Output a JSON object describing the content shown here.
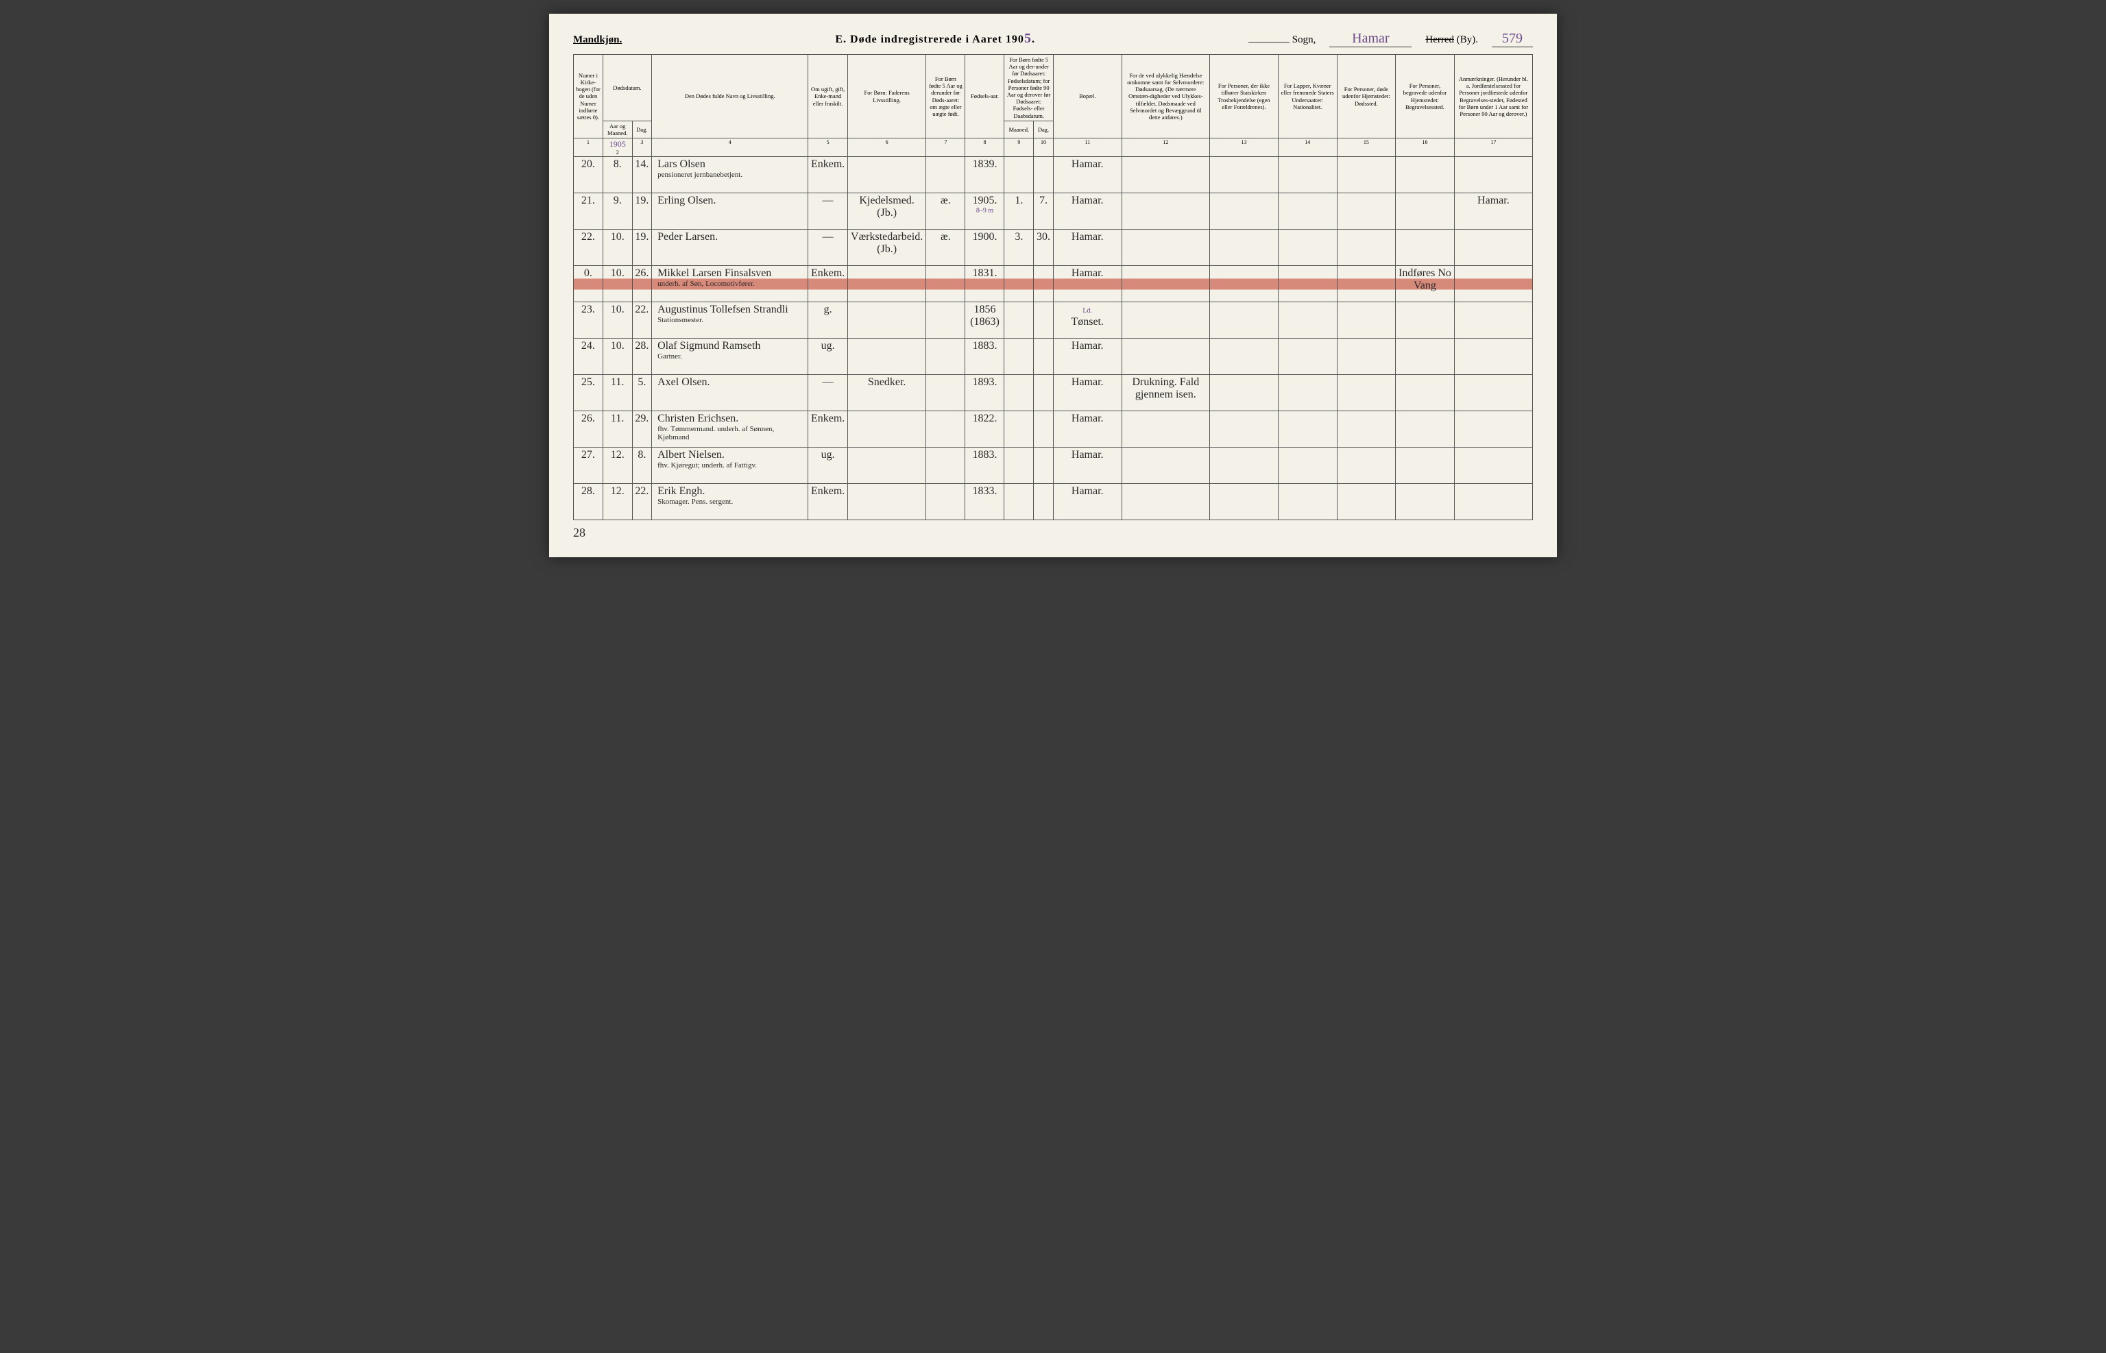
{
  "header": {
    "gender": "Mandkjøn.",
    "title_prefix": "E.   Døde indregistrerede i Aaret 190",
    "year_suffix": "5",
    "sogn_label": "Sogn,",
    "sogn_value": "Hamar",
    "herred_label": "Herred",
    "by_label": "(By).",
    "page_number": "579"
  },
  "columns": {
    "c1": "Numer i Kirke-bogen (for de uden Numer indførte sættes 0).",
    "c2_3": "Dødsdatum.",
    "c2": "Aar og Maaned.",
    "c3": "Dag.",
    "c4": "Den Dødes fulde Navn og Livsstilling.",
    "c5": "Om ugift, gift, Enke-mand eller fraskilt.",
    "c6": "For Børn: Faderens Livsstilling.",
    "c7": "For Børn fødte 5 Aar og derunder før Døds-aaret: om ægte eller uægte født.",
    "c8": "Fødsels-aar.",
    "c9_10": "For Børn fødte 5 Aar og der-under før Dødsaaret: Fødselsdatum; for Personer fødte 90 Aar og derover før Dødsaaret: Fødsels- eller Daabsdatum.",
    "c9": "Maaned.",
    "c10": "Dag.",
    "c11": "Bopæl.",
    "c12": "For de ved ulykkelig Hændelse omkomne samt for Selvmordere: Dødsaarsag. (De nærmere Omstæn-digheder ved Ulykkes-tilfældet, Dødsmaade ved Selvmordet og Bevæggrund til dette anføres.)",
    "c13": "For Personer, der ikke tilhører Statskirken Trosbekjendelse (egen eller Forældrenes).",
    "c14": "For Lapper, Kvæner eller fremmede Staters Undersaatter: Nationalitet.",
    "c15": "For Personer, døde udenfor Hjemstedet: Dødssted.",
    "c16": "For Personer, begravede udenfor Hjemstedet: Begravelsessted.",
    "c17": "Anmærkninger. (Herunder bl. a. Jordfæstelsessted for Personer jordfæstede udenfor Begravelses-stedet, Fødested for Børn under 1 Aar samt for Personer 90 Aar og derover.)"
  },
  "col_nums": [
    "1",
    "2",
    "3",
    "4",
    "5",
    "6",
    "7",
    "8",
    "9",
    "10",
    "11",
    "12",
    "13",
    "14",
    "15",
    "16",
    "17"
  ],
  "year_note": "1905",
  "rows": [
    {
      "num": "20.",
      "month": "8.",
      "day": "14.",
      "name": "Lars Olsen",
      "sub": "pensioneret jernbanebetjent.",
      "status": "Enkem.",
      "father": "",
      "legit": "",
      "birth": "1839.",
      "bm": "",
      "bd": "",
      "place": "Hamar.",
      "cause": "",
      "c13": "",
      "c14": "",
      "c15": "",
      "c16": "",
      "c17": ""
    },
    {
      "num": "21.",
      "month": "9.",
      "day": "19.",
      "name": "Erling Olsen.",
      "sub": "",
      "status": "—",
      "father": "Kjedelsmed. (Jb.)",
      "legit": "æ.",
      "birth": "1905.",
      "bm": "1.",
      "bd": "7.",
      "place": "Hamar.",
      "cause": "",
      "c13": "",
      "c14": "",
      "c15": "",
      "c16": "",
      "c17": "Hamar.",
      "note": "8–9 m"
    },
    {
      "num": "22.",
      "month": "10.",
      "day": "19.",
      "name": "Peder Larsen.",
      "sub": "",
      "status": "—",
      "father": "Værkstedarbeid. (Jb.)",
      "legit": "æ.",
      "birth": "1900.",
      "bm": "3.",
      "bd": "30.",
      "place": "Hamar.",
      "cause": "",
      "c13": "",
      "c14": "",
      "c15": "",
      "c16": "",
      "c17": ""
    },
    {
      "num": "0.",
      "month": "10.",
      "day": "26.",
      "name": "Mikkel Larsen Finsalsven",
      "sub": "underh. af Søn, Locomotivfører.",
      "status": "Enkem.",
      "father": "",
      "legit": "",
      "birth": "1831.",
      "bm": "",
      "bd": "",
      "place": "Hamar.",
      "cause": "",
      "c13": "",
      "c14": "",
      "c15": "",
      "c16": "Indføres No Vang",
      "c17": "",
      "highlight": true
    },
    {
      "num": "23.",
      "month": "10.",
      "day": "22.",
      "name": "Augustinus Tollefsen Strandli",
      "sub": "Stationsmester.",
      "status": "g.",
      "father": "",
      "legit": "",
      "birth": "1856 (1863)",
      "bm": "",
      "bd": "",
      "place": "Tønset.",
      "place_note": "Ld.",
      "cause": "",
      "c13": "",
      "c14": "",
      "c15": "",
      "c16": "",
      "c17": ""
    },
    {
      "num": "24.",
      "month": "10.",
      "day": "28.",
      "name": "Olaf Sigmund Ramseth",
      "sub": "Gartner.",
      "status": "ug.",
      "father": "",
      "legit": "",
      "birth": "1883.",
      "bm": "",
      "bd": "",
      "place": "Hamar.",
      "cause": "",
      "c13": "",
      "c14": "",
      "c15": "",
      "c16": "",
      "c17": ""
    },
    {
      "num": "25.",
      "month": "11.",
      "day": "5.",
      "name": "Axel Olsen.",
      "sub": "",
      "status": "—",
      "father": "Snedker.",
      "legit": "",
      "birth": "1893.",
      "bm": "",
      "bd": "",
      "place": "Hamar.",
      "cause": "Drukning. Fald gjennem isen.",
      "c13": "",
      "c14": "",
      "c15": "",
      "c16": "",
      "c17": ""
    },
    {
      "num": "26.",
      "month": "11.",
      "day": "29.",
      "name": "Christen Erichsen.",
      "sub": "fhv. Tømmermand. underh. af Sønnen, Kjøbmand",
      "status": "Enkem.",
      "father": "",
      "legit": "",
      "birth": "1822.",
      "bm": "",
      "bd": "",
      "place": "Hamar.",
      "cause": "",
      "c13": "",
      "c14": "",
      "c15": "",
      "c16": "",
      "c17": ""
    },
    {
      "num": "27.",
      "month": "12.",
      "day": "8.",
      "name": "Albert Nielsen.",
      "sub": "fhv. Kjøregut; underh. af Fattigv.",
      "status": "ug.",
      "father": "",
      "legit": "",
      "birth": "1883.",
      "bm": "",
      "bd": "",
      "place": "Hamar.",
      "cause": "",
      "c13": "",
      "c14": "",
      "c15": "",
      "c16": "",
      "c17": ""
    },
    {
      "num": "28.",
      "month": "12.",
      "day": "22.",
      "name": "Erik Engh.",
      "sub": "Skomager. Pens. sergent.",
      "status": "Enkem.",
      "father": "",
      "legit": "",
      "birth": "1833.",
      "bm": "",
      "bd": "",
      "place": "Hamar.",
      "cause": "",
      "c13": "",
      "c14": "",
      "c15": "",
      "c16": "",
      "c17": ""
    }
  ],
  "footer": "28"
}
